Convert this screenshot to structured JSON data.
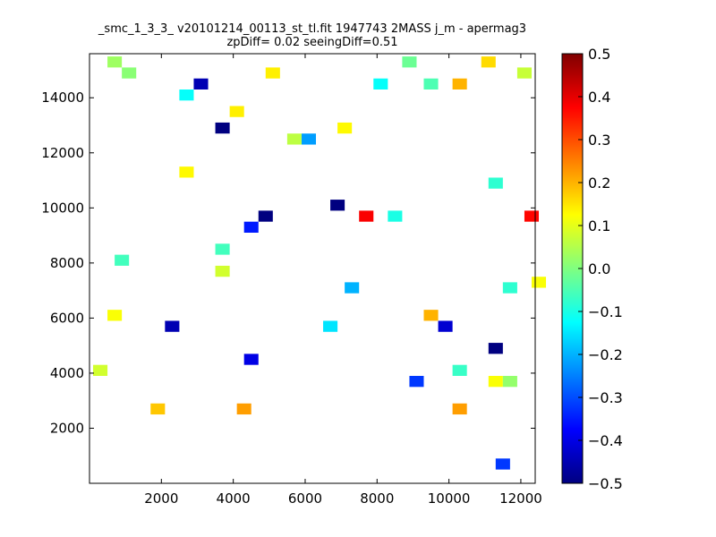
{
  "chart_data": {
    "type": "heatmap",
    "title": "_smc_1_3_3_ v20101214_00113_st_tl.fit 1947743 2MASS j_m - apermag3",
    "subtitle": "zpDiff= 0.02 seeingDiff=0.51",
    "xlabel": "",
    "ylabel": "",
    "xlim": [
      0,
      12400
    ],
    "ylim": [
      0,
      15600
    ],
    "xticks": [
      2000,
      4000,
      6000,
      8000,
      10000,
      12000
    ],
    "yticks": [
      2000,
      4000,
      6000,
      8000,
      10000,
      12000,
      14000
    ],
    "colorbar": {
      "colormap": "jet",
      "range": [
        -0.5,
        0.5
      ],
      "ticks": [
        -0.5,
        -0.4,
        -0.3,
        -0.2,
        -0.1,
        0.0,
        0.1,
        0.2,
        0.3,
        0.4,
        0.5
      ]
    },
    "grid": false,
    "cell_size": 400,
    "cells": [
      [
        700,
        15300,
        0.03
      ],
      [
        1100,
        14900,
        0.01
      ],
      [
        3100,
        14500,
        -0.45
      ],
      [
        2700,
        14100,
        -0.12
      ],
      [
        3700,
        12900,
        -0.5
      ],
      [
        6100,
        12500,
        -0.22
      ],
      [
        5700,
        12500,
        0.06
      ],
      [
        11300,
        10900,
        -0.08
      ],
      [
        6900,
        10100,
        -0.5
      ],
      [
        4900,
        9700,
        -0.5
      ],
      [
        7700,
        9700,
        0.38
      ],
      [
        8500,
        9700,
        -0.1
      ],
      [
        12300,
        9700,
        0.37
      ],
      [
        4500,
        9300,
        -0.35
      ],
      [
        3700,
        8500,
        -0.06
      ],
      [
        900,
        8100,
        -0.06
      ],
      [
        7300,
        7100,
        -0.2
      ],
      [
        11700,
        7100,
        -0.08
      ],
      [
        2300,
        5700,
        -0.45
      ],
      [
        6700,
        5700,
        -0.15
      ],
      [
        9900,
        5700,
        -0.42
      ],
      [
        9500,
        6100,
        0.2
      ],
      [
        11300,
        4900,
        -0.5
      ],
      [
        4500,
        4500,
        -0.4
      ],
      [
        9100,
        3700,
        -0.32
      ],
      [
        10300,
        4100,
        -0.07
      ],
      [
        10300,
        2700,
        0.22
      ],
      [
        4300,
        2700,
        0.22
      ],
      [
        1900,
        2700,
        0.18
      ],
      [
        11500,
        700,
        -0.32
      ],
      [
        8900,
        15300,
        -0.02
      ],
      [
        10300,
        14500,
        0.2
      ],
      [
        3700,
        7700,
        0.08
      ],
      [
        12500,
        7300,
        0.12
      ],
      [
        700,
        6100,
        0.12
      ],
      [
        300,
        4100,
        0.08
      ],
      [
        12100,
        14900,
        0.07
      ],
      [
        11100,
        15300,
        0.16
      ],
      [
        8100,
        14500,
        -0.12
      ],
      [
        9500,
        14500,
        -0.05
      ],
      [
        11300,
        3700,
        0.12
      ],
      [
        11700,
        3700,
        0.02
      ],
      [
        5100,
        14900,
        0.14
      ],
      [
        4100,
        13500,
        0.14
      ],
      [
        7100,
        12900,
        0.13
      ],
      [
        2700,
        11300,
        0.13
      ]
    ]
  }
}
